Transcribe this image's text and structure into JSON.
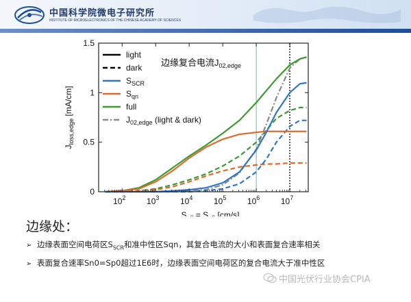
{
  "header": {
    "institute_cn": "中国科学院微电子研究所",
    "institute_en": "INSTITUTE OF MICROELECTRONICS OF THE CHINESE ACADEMY OF SCIENCES"
  },
  "chart_data": {
    "type": "line",
    "annotation": "边缘复合电流",
    "annotation_symbol": "J",
    "annotation_subscript": "02,edge",
    "xlabel": {
      "main": "S",
      "sub1": "n0",
      "mid": " = S",
      "sub2": "p0",
      "tail": " [cm/s]"
    },
    "ylabel": {
      "main": "J",
      "sub": "loss,edge",
      "tail": " [mA/cm]"
    },
    "xscale": "log",
    "xlim": [
      0.28,
      2.7
    ],
    "ylim": [
      0,
      1.5
    ],
    "x_ticks": [
      "10",
      "10",
      "10",
      "10",
      "10",
      "10"
    ],
    "x_tick_exps": [
      "2",
      "3",
      "4",
      "5",
      "6",
      "7"
    ],
    "x_tick_values": [
      2,
      3,
      4,
      5,
      6,
      7
    ],
    "y_ticks": [
      "0",
      "0.5",
      "1",
      "1.5"
    ],
    "y_tick_values": [
      0,
      0.5,
      1,
      1.5
    ],
    "vlines": [
      {
        "x": 6.0,
        "color": "#7fa9bf",
        "style": "solid"
      },
      {
        "x": 7.0,
        "color": "#555555",
        "style": "dotted"
      }
    ],
    "legend": [
      {
        "label": "light",
        "sub": "",
        "color": "#000000",
        "style": "solid"
      },
      {
        "label": "dark",
        "sub": "",
        "color": "#000000",
        "style": "dashed"
      },
      {
        "label": "S",
        "sub": "SCR",
        "color": "#2f77c3",
        "style": "solid"
      },
      {
        "label": "S",
        "sub": "qn",
        "color": "#e06a2c",
        "style": "solid"
      },
      {
        "label": "full",
        "sub": "",
        "color": "#3a9a2d",
        "style": "solid"
      },
      {
        "label": "J",
        "sub": "02,edge",
        "tail": " (light & dark)",
        "color": "#8a8a8a",
        "style": "dashdot"
      }
    ],
    "x_log_values": [
      1.5,
      2.0,
      2.5,
      3.0,
      3.5,
      4.0,
      4.5,
      5.0,
      5.5,
      6.0,
      6.3,
      6.6,
      7.0,
      7.3,
      7.5
    ],
    "series": [
      {
        "name": "full light",
        "color": "#3a9a2d",
        "style": "solid",
        "values": [
          0.0,
          0.01,
          0.04,
          0.12,
          0.24,
          0.36,
          0.47,
          0.59,
          0.72,
          0.9,
          1.02,
          1.14,
          1.28,
          1.34,
          1.36
        ]
      },
      {
        "name": "Sqn light",
        "color": "#e06a2c",
        "style": "solid",
        "values": [
          0.0,
          0.01,
          0.03,
          0.1,
          0.21,
          0.34,
          0.45,
          0.53,
          0.58,
          0.6,
          0.61,
          0.61,
          0.61,
          0.61,
          0.61
        ]
      },
      {
        "name": "SSCR light",
        "color": "#2f77c3",
        "style": "solid",
        "values": [
          0.0,
          0.0,
          0.0,
          0.0,
          0.01,
          0.02,
          0.04,
          0.09,
          0.2,
          0.42,
          0.6,
          0.8,
          1.0,
          1.09,
          1.1
        ]
      },
      {
        "name": "J02,edge light & dark",
        "color": "#8a8a8a",
        "style": "dashdot",
        "values": [
          0.0,
          0.0,
          0.0,
          0.0,
          0.0,
          0.01,
          0.02,
          0.07,
          0.19,
          0.43,
          0.68,
          0.95,
          1.25,
          1.34,
          1.36
        ]
      },
      {
        "name": "full dark",
        "color": "#3a9a2d",
        "style": "dashed",
        "values": [
          0.0,
          0.0,
          0.01,
          0.03,
          0.07,
          0.12,
          0.18,
          0.26,
          0.36,
          0.5,
          0.62,
          0.74,
          0.82,
          0.85,
          0.85
        ]
      },
      {
        "name": "Sqn dark",
        "color": "#e06a2c",
        "style": "dashed",
        "values": [
          0.0,
          0.0,
          0.01,
          0.02,
          0.05,
          0.1,
          0.16,
          0.21,
          0.25,
          0.27,
          0.28,
          0.28,
          0.29,
          0.29,
          0.29
        ]
      },
      {
        "name": "SSCR dark",
        "color": "#2f77c3",
        "style": "dashed",
        "values": [
          0.0,
          0.0,
          0.0,
          0.0,
          0.0,
          0.0,
          0.01,
          0.03,
          0.08,
          0.2,
          0.33,
          0.5,
          0.66,
          0.72,
          0.72
        ]
      }
    ]
  },
  "section": {
    "title": "边缘处："
  },
  "bullets": [
    {
      "arrow": "➢",
      "pre": "边缘表面空间电荷区S",
      "sub": "SCR",
      "post": "和准中性区Sqn，其复合电流的大小和表面复合速率相关"
    },
    {
      "arrow": "➢",
      "pre": "表面复合速率Sn0=Sp0超过1E6时，边缘表面空间电荷区的复合电流大于准中性区",
      "sub": "",
      "post": ""
    }
  ],
  "watermark": {
    "text": "中国光伏行业协会CPIA"
  }
}
